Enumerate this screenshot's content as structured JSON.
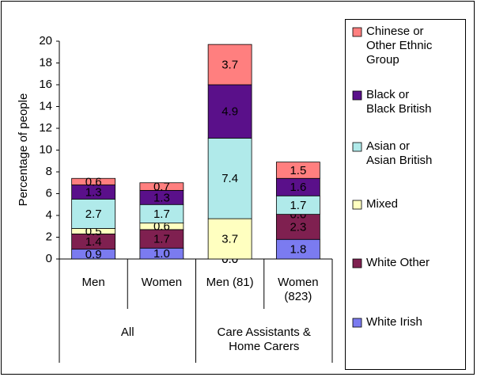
{
  "chart_data": {
    "type": "stacked-bar",
    "y_label": "Percentage of people",
    "categories": [
      "Men",
      "Women",
      "Men (81)",
      "Women (823)"
    ],
    "groups": [
      {
        "label": "All",
        "span": 2
      },
      {
        "label": "Care Assistants & Home Carers",
        "span": 2
      }
    ],
    "ylim": [
      0,
      20
    ],
    "yticks": [
      0,
      2,
      4,
      6,
      8,
      10,
      12,
      14,
      16,
      18,
      20
    ],
    "series": [
      {
        "name": "White Irish",
        "color": "#7b7bf0",
        "values": [
          0.9,
          1.0,
          0.0,
          1.8
        ],
        "value_labels": [
          "0.9",
          "1.0",
          "0.0",
          "1.8"
        ]
      },
      {
        "name": "White Other",
        "color": "#7f2050",
        "values": [
          1.4,
          1.7,
          0.0,
          2.3
        ],
        "value_labels": [
          "1.4",
          "1.7",
          "0.0",
          "2.3"
        ]
      },
      {
        "name": "Mixed",
        "color": "#ffffc0",
        "values": [
          0.5,
          0.6,
          3.7,
          0.0
        ],
        "value_labels": [
          "0.5",
          "0.6",
          "3.7",
          "0.0"
        ]
      },
      {
        "name": "Asian or Asian British",
        "color": "#b0eaea",
        "values": [
          2.7,
          1.7,
          7.4,
          1.7
        ],
        "value_labels": [
          "2.7",
          "1.7",
          "7.4",
          "1.7"
        ]
      },
      {
        "name": "Black or Black British",
        "color": "#5a108a",
        "values": [
          1.3,
          1.3,
          4.9,
          1.6
        ],
        "value_labels": [
          "1.3",
          "1.3",
          "4.9",
          "1.6"
        ]
      },
      {
        "name": "Chinese or Other Ethnic Group",
        "color": "#ff7f7f",
        "values": [
          0.6,
          0.7,
          3.7,
          1.5
        ],
        "value_labels": [
          "0.6",
          "0.7",
          "3.7",
          "1.5"
        ]
      }
    ]
  }
}
